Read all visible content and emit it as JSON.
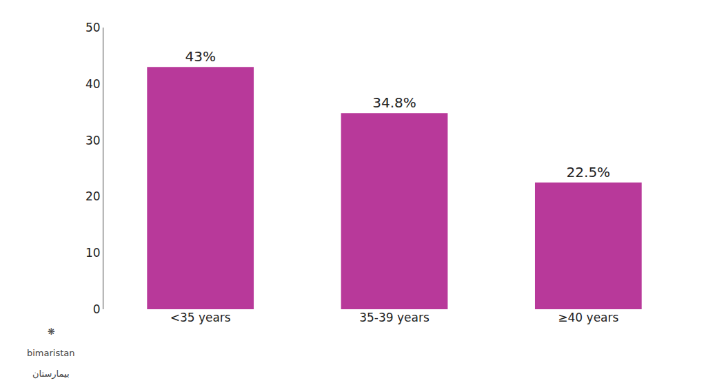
{
  "chart_data": {
    "type": "bar",
    "categories": [
      "<35 years",
      "35-39 years",
      "≥40 years"
    ],
    "values": [
      43.0,
      34.8,
      22.5
    ],
    "value_labels": [
      "43%",
      "34.8%",
      "22.5%"
    ],
    "data_labels": true,
    "color": "#b8399a",
    "ylim": [
      0,
      50
    ],
    "yticks": [
      0,
      10,
      20,
      30,
      40,
      50
    ],
    "grid": false,
    "annotations": [
      "❋",
      "bimaristan",
      "بيمارستان"
    ]
  }
}
